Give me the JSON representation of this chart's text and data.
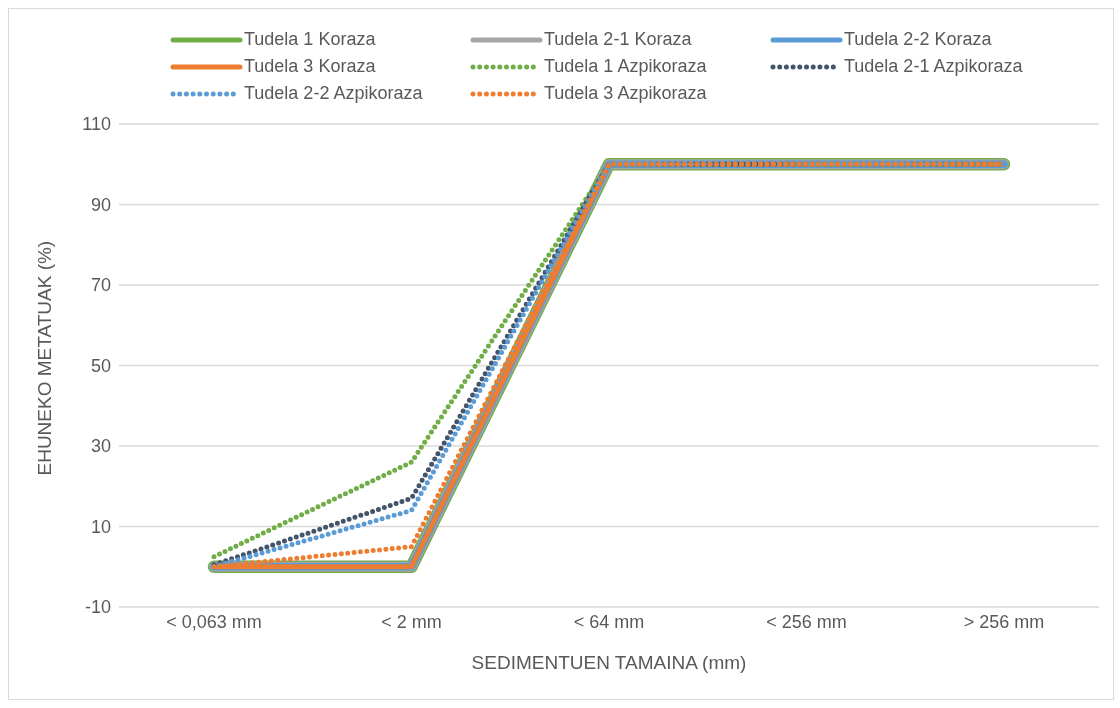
{
  "chart_data": {
    "type": "line",
    "xlabel": "SEDIMENTUEN TAMAINA (mm)",
    "ylabel": "EHUNEKO METATUAK (%)",
    "categories": [
      "< 0,063 mm",
      "< 2 mm",
      "< 64 mm",
      "< 256 mm",
      "> 256 mm"
    ],
    "ylim": [
      -10,
      110
    ],
    "yticks": [
      -10,
      10,
      30,
      50,
      70,
      90,
      110
    ],
    "grid": "y",
    "legend": "top",
    "marker": "none",
    "series": [
      {
        "name": "Tudela 1 Koraza",
        "color": "#70ad47",
        "line_style": "solid",
        "values": [
          0,
          0,
          100,
          100,
          100
        ]
      },
      {
        "name": "Tudela 2-1 Koraza",
        "color": "#a5a5a5",
        "line_style": "solid",
        "values": [
          0,
          0,
          100,
          100,
          100
        ]
      },
      {
        "name": "Tudela 2-2 Koraza",
        "color": "#5b9bd5",
        "line_style": "solid",
        "values": [
          0,
          0,
          100,
          100,
          100
        ]
      },
      {
        "name": "Tudela 3 Koraza",
        "color": "#ed7d31",
        "line_style": "solid",
        "values": [
          0,
          0,
          100,
          100,
          100
        ]
      },
      {
        "name": "Tudela 1 Azpikoraza",
        "color": "#70ad47",
        "line_style": "dotted",
        "values": [
          2.5,
          26,
          100,
          100,
          100
        ]
      },
      {
        "name": "Tudela 2-1 Azpikoraza",
        "color": "#44546a",
        "line_style": "dotted",
        "values": [
          0.5,
          17,
          100,
          100,
          100
        ]
      },
      {
        "name": "Tudela 2-2 Azpikoraza",
        "color": "#5b9bd5",
        "line_style": "dotted",
        "values": [
          0,
          14,
          100,
          100,
          100
        ]
      },
      {
        "name": "Tudela 3 Azpikoraza",
        "color": "#ed7d31",
        "line_style": "dotted",
        "values": [
          0,
          5,
          100,
          100,
          100
        ]
      }
    ]
  }
}
